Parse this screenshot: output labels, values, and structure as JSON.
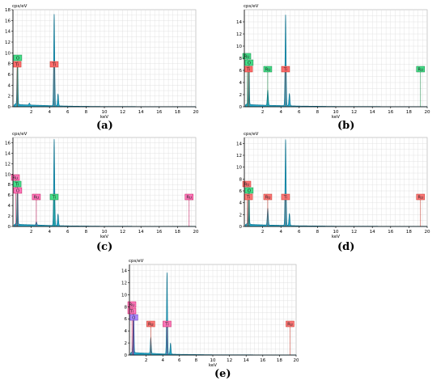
{
  "chart_data": [
    {
      "type": "line",
      "panel_label": "(a)",
      "ylabel": "cps/eV",
      "xlabel": "keV",
      "xlim": [
        0,
        20
      ],
      "ylim": [
        0,
        18
      ],
      "xticks": [
        2,
        4,
        6,
        8,
        10,
        12,
        14,
        16,
        18,
        20
      ],
      "yticks": [
        0,
        2,
        4,
        6,
        8,
        10,
        12,
        14,
        16,
        18
      ],
      "grid": true,
      "spectrum": {
        "baseline": [
          [
            0.1,
            0.3
          ],
          [
            0.3,
            0.6
          ],
          [
            0.8,
            0.4
          ],
          [
            1.5,
            0.35
          ],
          [
            2.5,
            0.3
          ],
          [
            3.5,
            0.25
          ],
          [
            4.3,
            0.2
          ],
          [
            5.5,
            0.15
          ],
          [
            7,
            0.1
          ],
          [
            10,
            0.05
          ],
          [
            20,
            0.02
          ]
        ],
        "peaks": [
          {
            "x": 0.45,
            "y": 5.0
          },
          {
            "x": 0.52,
            "y": 6.5
          },
          {
            "x": 4.51,
            "y": 17.0
          },
          {
            "x": 4.93,
            "y": 2.2
          },
          {
            "x": 1.8,
            "y": 0.35
          }
        ]
      },
      "markers": [
        {
          "label": "O",
          "x": 0.52,
          "color": "#44dd88",
          "edge": "#1a8a4a",
          "stack": 1
        },
        {
          "label": "Ti",
          "x": 0.45,
          "color": "#ff6b6b",
          "edge": "#c0392b",
          "stack": 0
        },
        {
          "label": "Ti",
          "x": 4.51,
          "color": "#ff6b6b",
          "edge": "#c0392b",
          "stack": 0
        }
      ]
    },
    {
      "type": "line",
      "panel_label": "(b)",
      "ylabel": "cps/eV",
      "xlabel": "keV",
      "xlim": [
        0,
        20
      ],
      "ylim": [
        0,
        16
      ],
      "xticks": [
        2,
        4,
        6,
        8,
        10,
        12,
        14,
        16,
        18,
        20
      ],
      "yticks": [
        0,
        2,
        4,
        6,
        8,
        10,
        12,
        14
      ],
      "grid": true,
      "spectrum": {
        "baseline": [
          [
            0.1,
            0.3
          ],
          [
            0.3,
            0.5
          ],
          [
            0.8,
            0.35
          ],
          [
            1.5,
            0.3
          ],
          [
            2.5,
            0.25
          ],
          [
            4,
            0.2
          ],
          [
            6,
            0.12
          ],
          [
            10,
            0.05
          ],
          [
            20,
            0.02
          ]
        ],
        "peaks": [
          {
            "x": 0.45,
            "y": 4.5
          },
          {
            "x": 0.52,
            "y": 6.0
          },
          {
            "x": 4.51,
            "y": 15.0
          },
          {
            "x": 4.93,
            "y": 2.0
          },
          {
            "x": 2.56,
            "y": 2.5
          }
        ]
      },
      "markers": [
        {
          "label": "Ru",
          "x": 0.3,
          "color": "#44dd88",
          "edge": "#1a8a4a",
          "stack": 2
        },
        {
          "label": "O",
          "x": 0.52,
          "color": "#44dd88",
          "edge": "#1a8a4a",
          "stack": 1
        },
        {
          "label": "Ti",
          "x": 0.45,
          "color": "#ff6b6b",
          "edge": "#c0392b",
          "stack": 0
        },
        {
          "label": "Ru",
          "x": 2.56,
          "color": "#44dd88",
          "edge": "#1a8a4a",
          "stack": 0
        },
        {
          "label": "Ti",
          "x": 4.51,
          "color": "#ff6b6b",
          "edge": "#c0392b",
          "stack": 0
        },
        {
          "label": "Ru",
          "x": 19.27,
          "color": "#44dd88",
          "edge": "#1a8a4a",
          "stack": 0
        }
      ]
    },
    {
      "type": "line",
      "panel_label": "(c)",
      "ylabel": "cps/eV",
      "xlabel": "keV",
      "xlim": [
        0,
        20
      ],
      "ylim": [
        0,
        17
      ],
      "xticks": [
        2,
        4,
        6,
        8,
        10,
        12,
        14,
        16,
        18,
        20
      ],
      "yticks": [
        0,
        2,
        4,
        6,
        8,
        10,
        12,
        14,
        16
      ],
      "grid": true,
      "spectrum": {
        "baseline": [
          [
            0.1,
            0.3
          ],
          [
            0.3,
            0.55
          ],
          [
            0.8,
            0.4
          ],
          [
            1.5,
            0.35
          ],
          [
            2.5,
            0.3
          ],
          [
            4,
            0.2
          ],
          [
            6,
            0.12
          ],
          [
            10,
            0.05
          ],
          [
            20,
            0.02
          ]
        ],
        "peaks": [
          {
            "x": 0.45,
            "y": 4.0
          },
          {
            "x": 0.52,
            "y": 6.5
          },
          {
            "x": 4.51,
            "y": 16.5
          },
          {
            "x": 4.93,
            "y": 2.2
          },
          {
            "x": 2.56,
            "y": 0.6
          }
        ]
      },
      "markers": [
        {
          "label": "Ru",
          "x": 0.3,
          "color": "#ff77bb",
          "edge": "#c2185b",
          "stack": 3
        },
        {
          "label": "Ti",
          "x": 0.45,
          "color": "#44dd88",
          "edge": "#1a8a4a",
          "stack": 2
        },
        {
          "label": "O",
          "x": 0.52,
          "color": "#ff77bb",
          "edge": "#c2185b",
          "stack": 1
        },
        {
          "label": "Ru",
          "x": 2.56,
          "color": "#ff77bb",
          "edge": "#c2185b",
          "stack": 0
        },
        {
          "label": "Ti",
          "x": 4.51,
          "color": "#44dd88",
          "edge": "#1a8a4a",
          "stack": 0
        },
        {
          "label": "Ru",
          "x": 19.27,
          "color": "#ff77bb",
          "edge": "#c2185b",
          "stack": 0
        }
      ]
    },
    {
      "type": "line",
      "panel_label": "(d)",
      "ylabel": "cps/eV",
      "xlabel": "keV",
      "xlim": [
        0,
        20
      ],
      "ylim": [
        0,
        15
      ],
      "xticks": [
        2,
        4,
        6,
        8,
        10,
        12,
        14,
        16,
        18,
        20
      ],
      "yticks": [
        0,
        2,
        4,
        6,
        8,
        10,
        12,
        14
      ],
      "grid": true,
      "spectrum": {
        "baseline": [
          [
            0.1,
            0.3
          ],
          [
            0.3,
            0.5
          ],
          [
            0.8,
            0.35
          ],
          [
            1.5,
            0.3
          ],
          [
            2.5,
            0.25
          ],
          [
            4,
            0.2
          ],
          [
            6,
            0.12
          ],
          [
            10,
            0.05
          ],
          [
            20,
            0.02
          ]
        ],
        "peaks": [
          {
            "x": 0.45,
            "y": 4.0
          },
          {
            "x": 0.52,
            "y": 5.5
          },
          {
            "x": 4.51,
            "y": 14.5
          },
          {
            "x": 4.93,
            "y": 2.0
          },
          {
            "x": 2.56,
            "y": 2.8
          }
        ]
      },
      "markers": [
        {
          "label": "Ru",
          "x": 0.3,
          "color": "#ff7777",
          "edge": "#c0392b",
          "stack": 2
        },
        {
          "label": "O",
          "x": 0.52,
          "color": "#44dd88",
          "edge": "#1a8a4a",
          "stack": 1
        },
        {
          "label": "Ti",
          "x": 0.45,
          "color": "#ff7777",
          "edge": "#c0392b",
          "stack": 0
        },
        {
          "label": "Ru",
          "x": 2.56,
          "color": "#ff7777",
          "edge": "#c0392b",
          "stack": 0
        },
        {
          "label": "Ti",
          "x": 4.51,
          "color": "#ff7777",
          "edge": "#c0392b",
          "stack": 0
        },
        {
          "label": "Ru",
          "x": 19.27,
          "color": "#ff7777",
          "edge": "#c0392b",
          "stack": 0
        }
      ]
    },
    {
      "type": "line",
      "panel_label": "(e)",
      "ylabel": "cps/eV",
      "xlabel": "keV",
      "xlim": [
        0,
        20
      ],
      "ylim": [
        0,
        15
      ],
      "xticks": [
        2,
        4,
        6,
        8,
        10,
        12,
        14,
        16,
        18,
        20
      ],
      "yticks": [
        0,
        2,
        4,
        6,
        8,
        10,
        12,
        14
      ],
      "grid": true,
      "spectrum": {
        "baseline": [
          [
            0.1,
            0.3
          ],
          [
            0.3,
            0.55
          ],
          [
            0.8,
            0.4
          ],
          [
            1.5,
            0.35
          ],
          [
            2.5,
            0.3
          ],
          [
            4,
            0.2
          ],
          [
            6,
            0.12
          ],
          [
            10,
            0.05
          ],
          [
            20,
            0.02
          ]
        ],
        "peaks": [
          {
            "x": 0.45,
            "y": 5.0
          },
          {
            "x": 0.52,
            "y": 6.0
          },
          {
            "x": 4.51,
            "y": 13.5
          },
          {
            "x": 4.93,
            "y": 1.8
          },
          {
            "x": 2.56,
            "y": 2.6
          }
        ]
      },
      "markers": [
        {
          "label": "Ru",
          "x": 0.3,
          "color": "#ff77bb",
          "edge": "#c2185b",
          "stack": 3
        },
        {
          "label": "Ti",
          "x": 0.45,
          "color": "#ff77bb",
          "edge": "#c2185b",
          "stack": 2
        },
        {
          "label": "O",
          "x": 0.52,
          "color": "#aa88ff",
          "edge": "#5e35b1",
          "stack": 1
        },
        {
          "label": "Ru",
          "x": 2.56,
          "color": "#ff7777",
          "edge": "#c0392b",
          "stack": 0
        },
        {
          "label": "Ti",
          "x": 4.51,
          "color": "#ff77bb",
          "edge": "#c2185b",
          "stack": 0
        },
        {
          "label": "Ru",
          "x": 19.27,
          "color": "#ff7777",
          "edge": "#c0392b",
          "stack": 0
        }
      ]
    }
  ],
  "colors": {
    "spectrum_fill": "#1ba3c6",
    "spectrum_line": "#0b6e8a",
    "grid": "#dcdcdc",
    "axis": "#000000"
  }
}
